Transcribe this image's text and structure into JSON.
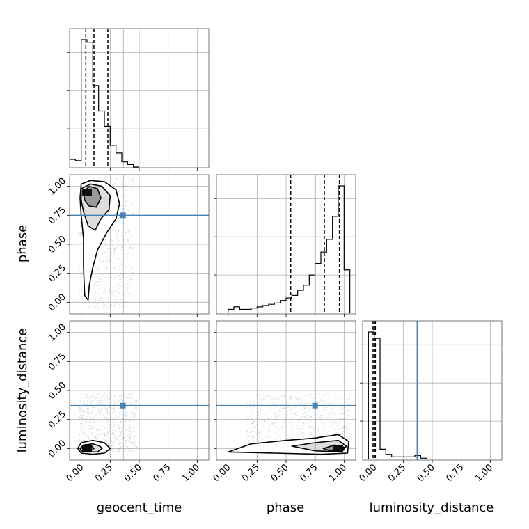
{
  "figure": {
    "type": "corner_plot",
    "parameters": [
      "geocent_time",
      "phase",
      "luminosity_distance"
    ]
  },
  "chart_data": {
    "type": "corner",
    "parameters": [
      "geocent_time",
      "phase",
      "luminosity_distance"
    ],
    "tick_values": [
      0.0,
      0.25,
      0.5,
      0.75,
      1.0
    ],
    "tick_labels": [
      "0.00",
      "0.25",
      "0.50",
      "0.75",
      "1.00"
    ],
    "axis_range": [
      -0.1,
      1.1
    ],
    "grid": true,
    "truths": {
      "geocent_time": 0.36,
      "phase": 0.75,
      "luminosity_distance": 0.37
    },
    "truth_color": "#4682b4",
    "line_color": "#000000",
    "histograms": [
      {
        "parameter": "geocent_time",
        "bin_edges": [
          -0.1,
          -0.05,
          0.0,
          0.05,
          0.1,
          0.15,
          0.2,
          0.25,
          0.3,
          0.35,
          0.4,
          0.45,
          0.5
        ],
        "counts": [
          0.06,
          0.05,
          1.0,
          0.98,
          0.64,
          0.44,
          0.32,
          0.17,
          0.11,
          0.04,
          0.02,
          0.0
        ],
        "quantiles": [
          0.04,
          0.11,
          0.23
        ]
      },
      {
        "parameter": "phase",
        "bin_edges": [
          0.0,
          0.05,
          0.1,
          0.15,
          0.2,
          0.25,
          0.3,
          0.35,
          0.4,
          0.45,
          0.5,
          0.55,
          0.6,
          0.65,
          0.7,
          0.75,
          0.8,
          0.85,
          0.9,
          0.95,
          1.0,
          1.05
        ],
        "counts": [
          0.03,
          0.05,
          0.03,
          0.03,
          0.04,
          0.05,
          0.06,
          0.07,
          0.08,
          0.1,
          0.12,
          0.14,
          0.18,
          0.22,
          0.3,
          0.39,
          0.48,
          0.58,
          0.76,
          1.0,
          0.34
        ],
        "quantiles": [
          0.54,
          0.83,
          0.96
        ]
      },
      {
        "parameter": "luminosity_distance",
        "bin_edges": [
          -0.05,
          0.0,
          0.05,
          0.1,
          0.15,
          0.2,
          0.25,
          0.3,
          0.35,
          0.4,
          0.45
        ],
        "counts": [
          1.0,
          0.95,
          0.08,
          0.04,
          0.02,
          0.02,
          0.02,
          0.02,
          0.03,
          0.01
        ],
        "quantiles": [
          -0.01,
          0.0,
          0.01
        ]
      }
    ],
    "pairs": [
      {
        "x": "geocent_time",
        "y": "phase",
        "peak": [
          0.05,
          0.95
        ],
        "contours": [
          [
            [
              0.0,
              1.02
            ],
            [
              0.08,
              1.05
            ],
            [
              0.2,
              1.04
            ],
            [
              0.3,
              0.97
            ],
            [
              0.33,
              0.85
            ],
            [
              0.3,
              0.72
            ],
            [
              0.22,
              0.6
            ],
            [
              0.14,
              0.45
            ],
            [
              0.1,
              0.3
            ],
            [
              0.07,
              0.15
            ],
            [
              0.06,
              0.02
            ],
            [
              0.03,
              0.06
            ],
            [
              0.02,
              0.3
            ],
            [
              0.02,
              0.55
            ],
            [
              0.0,
              0.75
            ],
            [
              -0.01,
              0.9
            ]
          ],
          [
            [
              0.0,
              0.98
            ],
            [
              0.08,
              1.02
            ],
            [
              0.18,
              1.0
            ],
            [
              0.25,
              0.92
            ],
            [
              0.24,
              0.8
            ],
            [
              0.17,
              0.72
            ],
            [
              0.12,
              0.62
            ],
            [
              0.06,
              0.66
            ],
            [
              0.02,
              0.78
            ],
            [
              0.0,
              0.88
            ]
          ],
          [
            [
              0.02,
              0.95
            ],
            [
              0.07,
              1.0
            ],
            [
              0.14,
              0.98
            ],
            [
              0.17,
              0.9
            ],
            [
              0.13,
              0.82
            ],
            [
              0.07,
              0.83
            ],
            [
              0.03,
              0.88
            ]
          ]
        ],
        "scatter_range": {
          "x": [
            -0.02,
            0.45
          ],
          "y": [
            -0.05,
            1.08
          ]
        }
      },
      {
        "x": "geocent_time",
        "y": "luminosity_distance",
        "peak": [
          0.05,
          0.0
        ],
        "contours": [
          [
            [
              -0.03,
              0.0
            ],
            [
              0.0,
              0.05
            ],
            [
              0.1,
              0.07
            ],
            [
              0.2,
              0.05
            ],
            [
              0.25,
              0.0
            ],
            [
              0.2,
              -0.04
            ],
            [
              0.1,
              -0.05
            ],
            [
              0.0,
              -0.04
            ]
          ],
          [
            [
              -0.01,
              0.0
            ],
            [
              0.02,
              0.03
            ],
            [
              0.1,
              0.04
            ],
            [
              0.16,
              0.02
            ],
            [
              0.18,
              0.0
            ],
            [
              0.14,
              -0.03
            ],
            [
              0.05,
              -0.03
            ],
            [
              0.0,
              -0.02
            ]
          ],
          [
            [
              0.01,
              0.0
            ],
            [
              0.04,
              0.02
            ],
            [
              0.09,
              0.02
            ],
            [
              0.11,
              0.0
            ],
            [
              0.08,
              -0.02
            ],
            [
              0.03,
              -0.02
            ]
          ]
        ],
        "scatter_range": {
          "x": [
            -0.02,
            0.48
          ],
          "y": [
            -0.03,
            0.48
          ]
        }
      },
      {
        "x": "phase",
        "y": "luminosity_distance",
        "peak": [
          0.95,
          0.0
        ],
        "contours": [
          [
            [
              0.0,
              -0.03
            ],
            [
              0.2,
              0.04
            ],
            [
              0.5,
              0.07
            ],
            [
              0.75,
              0.09
            ],
            [
              0.95,
              0.12
            ],
            [
              1.04,
              0.06
            ],
            [
              1.03,
              -0.04
            ],
            [
              0.8,
              -0.05
            ],
            [
              0.4,
              -0.04
            ]
          ],
          [
            [
              0.55,
              0.02
            ],
            [
              0.75,
              0.05
            ],
            [
              0.95,
              0.07
            ],
            [
              1.02,
              0.02
            ],
            [
              0.98,
              -0.03
            ],
            [
              0.75,
              -0.02
            ]
          ],
          [
            [
              0.82,
              0.0
            ],
            [
              0.92,
              0.03
            ],
            [
              1.0,
              0.01
            ],
            [
              0.98,
              -0.02
            ],
            [
              0.88,
              -0.02
            ]
          ]
        ],
        "scatter_range": {
          "x": [
            0.15,
            1.05
          ],
          "y": [
            -0.03,
            0.48
          ]
        }
      }
    ]
  }
}
